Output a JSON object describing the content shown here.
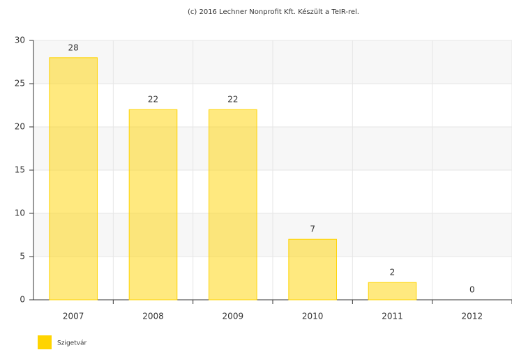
{
  "chart_data": {
    "type": "bar",
    "title": "(c) 2016 Lechner Nonprofit Kft. Készült a TeIR-rel.",
    "categories": [
      "2007",
      "2008",
      "2009",
      "2010",
      "2011",
      "2012"
    ],
    "series": [
      {
        "name": "Szigetvár",
        "color": "#ffd400",
        "values": [
          28,
          22,
          22,
          7,
          2,
          0
        ]
      }
    ],
    "ylim": [
      0,
      30
    ],
    "yticks": [
      0,
      5,
      10,
      15,
      20,
      25,
      30
    ],
    "grid": true,
    "legend": "bottom-left"
  }
}
